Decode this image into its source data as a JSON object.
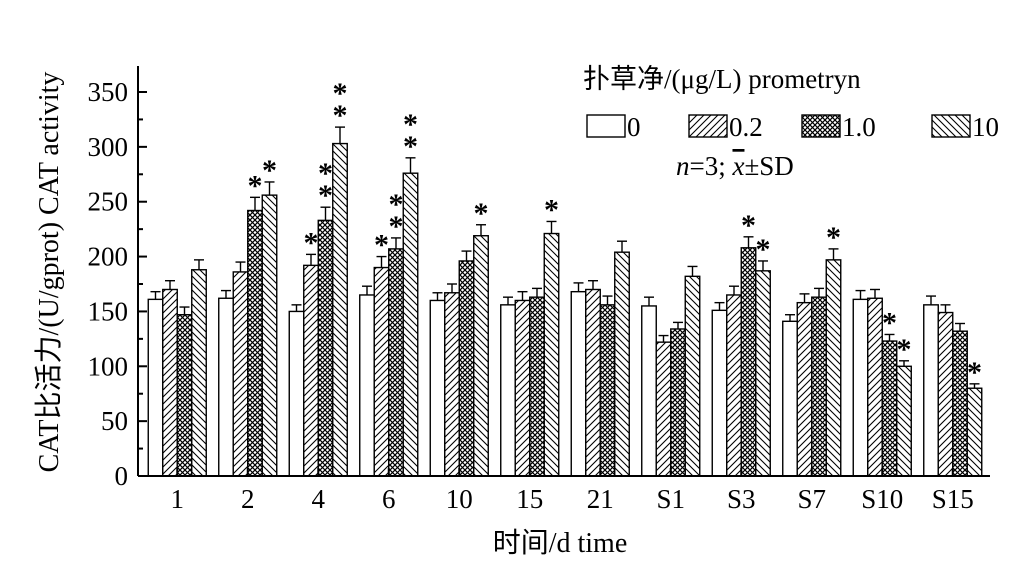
{
  "chart_data": {
    "type": "bar",
    "ylabel": "CAT比活力/(U/gprot) CAT activity",
    "xlabel": "时间/d time",
    "ylim": [
      0,
      350
    ],
    "yticks": [
      0,
      50,
      100,
      150,
      200,
      250,
      300,
      350
    ],
    "categories": [
      "1",
      "2",
      "4",
      "6",
      "10",
      "15",
      "21",
      "S1",
      "S3",
      "S7",
      "S10",
      "S15"
    ],
    "legend_title": "扑草净/(μg/L) prometryn",
    "legend_placement": "top-right",
    "note": {
      "n": "n",
      "eq": "=3; ",
      "x": "x",
      "pm": "±SD"
    },
    "significance_marker": "*",
    "grid": false,
    "series": [
      {
        "name": "0",
        "pattern": "none",
        "values": [
          161,
          162,
          150,
          165,
          160,
          156,
          168,
          155,
          151,
          141,
          161,
          156
        ],
        "errors": [
          7,
          7,
          6,
          8,
          7,
          7,
          8,
          8,
          7,
          6,
          8,
          8
        ],
        "stars": [
          0,
          0,
          0,
          0,
          0,
          0,
          0,
          0,
          0,
          0,
          0,
          0
        ]
      },
      {
        "name": "0.2",
        "pattern": "diag-up",
        "values": [
          170,
          186,
          192,
          190,
          167,
          160,
          170,
          122,
          165,
          158,
          162,
          149
        ],
        "errors": [
          8,
          9,
          10,
          10,
          8,
          8,
          8,
          6,
          8,
          8,
          8,
          7
        ],
        "stars": [
          0,
          0,
          1,
          1,
          0,
          0,
          0,
          0,
          0,
          0,
          0,
          0
        ]
      },
      {
        "name": "1.0",
        "pattern": "cross",
        "values": [
          147,
          242,
          233,
          207,
          196,
          163,
          156,
          134,
          208,
          163,
          123,
          132
        ],
        "errors": [
          7,
          12,
          12,
          10,
          9,
          8,
          8,
          6,
          10,
          8,
          6,
          7
        ],
        "stars": [
          0,
          1,
          2,
          2,
          0,
          0,
          0,
          0,
          1,
          0,
          1,
          0
        ]
      },
      {
        "name": "10",
        "pattern": "diag-down",
        "values": [
          188,
          256,
          303,
          276,
          219,
          221,
          204,
          182,
          187,
          197,
          100,
          80
        ],
        "errors": [
          9,
          12,
          15,
          14,
          10,
          11,
          10,
          9,
          9,
          10,
          5,
          4
        ],
        "stars": [
          0,
          1,
          2,
          2,
          1,
          1,
          0,
          0,
          1,
          1,
          1,
          1
        ]
      }
    ]
  }
}
